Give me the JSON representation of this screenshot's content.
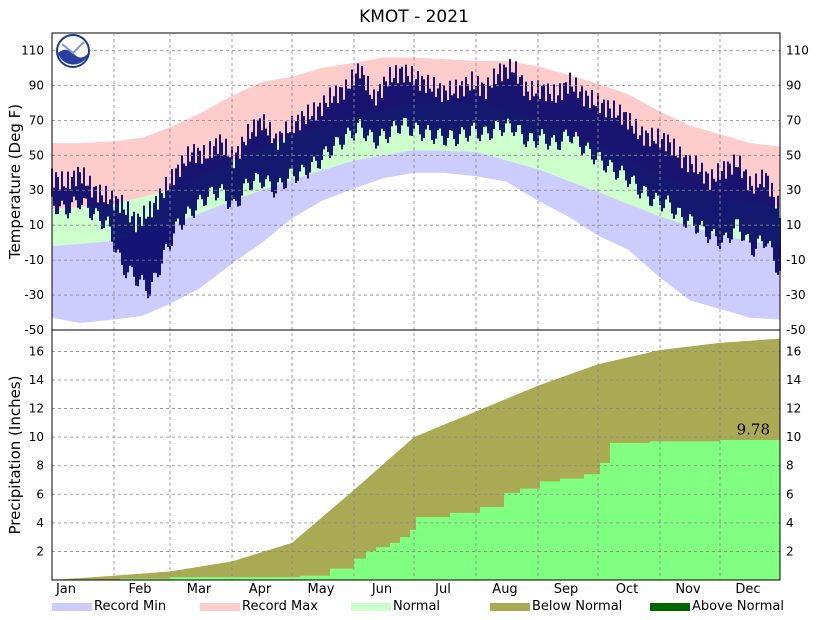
{
  "title": "KMOT - 2021",
  "colors": {
    "record_min": "#ccccff",
    "record_max": "#ffcccc",
    "normal": "#ccffcc",
    "observed": "#000066",
    "below_normal": "#aaaa55",
    "above_normal": "#006600",
    "actual_precip": "#80ff80"
  },
  "chart_data": [
    {
      "type": "area",
      "ylabel": "Temperature (Deg F)",
      "ylim": [
        -50,
        120
      ],
      "yticks": [
        110,
        90,
        70,
        50,
        30,
        10,
        -10,
        -30,
        -50
      ],
      "grid": true,
      "bands": {
        "record_max": {
          "x": [
            1,
            15,
            32,
            46,
            60,
            75,
            91,
            106,
            121,
            136,
            152,
            167,
            182,
            197,
            213,
            228,
            244,
            259,
            274,
            289,
            305,
            320,
            335,
            350,
            365
          ],
          "y": [
            57,
            57,
            58,
            60,
            66,
            74,
            84,
            92,
            95,
            100,
            103,
            106,
            106,
            105,
            104,
            104,
            101,
            96,
            91,
            85,
            75,
            67,
            62,
            57,
            55
          ]
        },
        "normal_high": {
          "x": [
            1,
            32,
            60,
            91,
            121,
            152,
            182,
            213,
            244,
            274,
            305,
            335,
            365
          ],
          "y": [
            19,
            22,
            30,
            46,
            61,
            72,
            80,
            80,
            70,
            56,
            38,
            26,
            20
          ]
        },
        "normal_low": {
          "x": [
            1,
            32,
            60,
            91,
            121,
            152,
            182,
            213,
            244,
            274,
            305,
            335,
            365
          ],
          "y": [
            -2,
            1,
            10,
            24,
            36,
            47,
            53,
            52,
            42,
            29,
            15,
            4,
            -2
          ]
        },
        "record_min": {
          "x": [
            1,
            15,
            32,
            46,
            60,
            75,
            91,
            106,
            121,
            136,
            152,
            167,
            182,
            197,
            213,
            228,
            244,
            259,
            274,
            289,
            305,
            320,
            335,
            350,
            365
          ],
          "y": [
            -43,
            -46,
            -44,
            -42,
            -35,
            -26,
            -12,
            0,
            14,
            24,
            31,
            37,
            40,
            40,
            38,
            35,
            24,
            15,
            4,
            -4,
            -20,
            -33,
            -38,
            -43,
            -44
          ]
        }
      },
      "observed": {
        "x": [
          1,
          8,
          15,
          22,
          29,
          36,
          43,
          50,
          57,
          64,
          71,
          78,
          85,
          92,
          99,
          106,
          113,
          120,
          127,
          134,
          141,
          148,
          155,
          162,
          169,
          176,
          183,
          190,
          197,
          204,
          211,
          218,
          225,
          232,
          239,
          246,
          253,
          260,
          267,
          274,
          281,
          288,
          295,
          302,
          309,
          316,
          323,
          330,
          337,
          344,
          351,
          358,
          365
        ],
        "high": [
          38,
          34,
          40,
          30,
          26,
          22,
          12,
          18,
          30,
          42,
          52,
          50,
          58,
          48,
          62,
          70,
          58,
          66,
          72,
          76,
          84,
          88,
          100,
          82,
          94,
          98,
          94,
          90,
          86,
          88,
          92,
          88,
          98,
          100,
          86,
          88,
          84,
          92,
          84,
          80,
          76,
          72,
          62,
          60,
          58,
          48,
          44,
          36,
          42,
          46,
          32,
          38,
          18
        ],
        "low": [
          22,
          18,
          24,
          16,
          10,
          -14,
          -20,
          -28,
          -8,
          10,
          18,
          26,
          30,
          20,
          34,
          36,
          30,
          38,
          40,
          46,
          54,
          60,
          66,
          58,
          62,
          68,
          64,
          62,
          60,
          60,
          64,
          62,
          66,
          66,
          58,
          60,
          56,
          62,
          54,
          48,
          42,
          38,
          30,
          24,
          22,
          14,
          10,
          4,
          0,
          10,
          -4,
          2,
          -18
        ]
      }
    },
    {
      "type": "area",
      "ylabel": "Precipitation (Inches)",
      "ylim": [
        0,
        17.5
      ],
      "yticks": [
        16,
        14,
        12,
        10,
        8,
        6,
        4,
        2
      ],
      "xticks": [
        "Jan",
        "Feb",
        "Mar",
        "Apr",
        "May",
        "Jun",
        "Jul",
        "Aug",
        "Sep",
        "Oct",
        "Nov",
        "Dec"
      ],
      "grid": true,
      "normal_cumulative": {
        "x": [
          1,
          32,
          60,
          91,
          121,
          152,
          182,
          213,
          244,
          274,
          305,
          335,
          365
        ],
        "y": [
          0.0,
          0.3,
          0.6,
          1.3,
          2.6,
          6.3,
          10.0,
          11.8,
          13.6,
          15.1,
          16.1,
          16.6,
          16.9
        ]
      },
      "actual_cumulative": {
        "x": [
          1,
          35,
          60,
          91,
          125,
          140,
          152,
          158,
          163,
          170,
          175,
          180,
          183,
          190,
          200,
          215,
          227,
          235,
          245,
          255,
          267,
          275,
          280,
          300,
          320,
          335,
          350,
          365
        ],
        "y": [
          0.0,
          0.1,
          0.2,
          0.2,
          0.3,
          0.8,
          1.5,
          2.0,
          2.3,
          2.6,
          3.0,
          3.5,
          4.4,
          4.4,
          4.7,
          5.1,
          6.1,
          6.4,
          6.9,
          7.1,
          7.4,
          8.2,
          9.6,
          9.7,
          9.7,
          9.8,
          9.8,
          9.78
        ]
      },
      "annotation": "9.78"
    }
  ],
  "legend": [
    "Record Min",
    "Record Max",
    "Normal",
    "Below Normal",
    "Above Normal"
  ]
}
